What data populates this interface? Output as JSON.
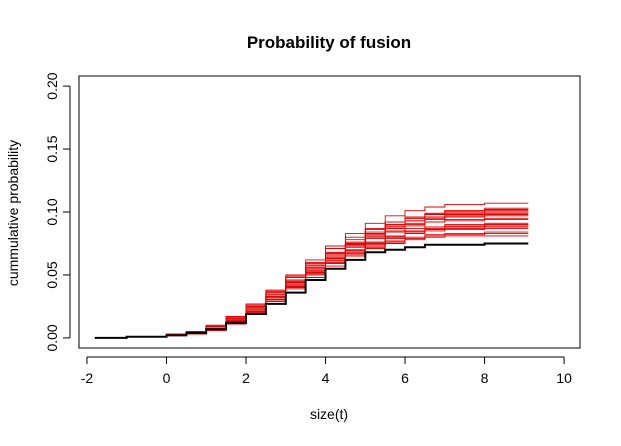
{
  "chart_data": {
    "type": "line",
    "title": "Probability of fusion",
    "xlabel": "size(t)",
    "ylabel": "cummulative probability",
    "xlim": [
      -2.2,
      10.4
    ],
    "ylim": [
      -0.008,
      0.208
    ],
    "xticks": [
      -2,
      0,
      2,
      4,
      6,
      8,
      10
    ],
    "xtick_labels": [
      "-2",
      "0",
      "2",
      "4",
      "6",
      "8",
      "10"
    ],
    "yticks": [
      0.0,
      0.05,
      0.1,
      0.15,
      0.2
    ],
    "ytick_labels": [
      "0.00",
      "0.05",
      "0.10",
      "0.15",
      "0.20"
    ],
    "grid": false,
    "legend": "none",
    "line_style": "step",
    "colors": {
      "reference": "#000000",
      "simulations": "#e00000"
    },
    "series": [
      {
        "color": "#000000",
        "role": "reference",
        "x": [
          -1.8,
          -1.0,
          0.0,
          0.5,
          1.0,
          1.5,
          2.0,
          2.5,
          3.0,
          3.5,
          4.0,
          4.5,
          5.0,
          5.5,
          6.0,
          6.5,
          7.0,
          8.0,
          9.1
        ],
        "y": [
          0.0,
          0.001,
          0.002,
          0.004,
          0.007,
          0.012,
          0.019,
          0.027,
          0.036,
          0.046,
          0.055,
          0.062,
          0.068,
          0.07,
          0.072,
          0.074,
          0.074,
          0.075,
          0.075
        ]
      },
      {
        "color": "#e00000",
        "role": "simulation",
        "x": [
          -1.8,
          -1.0,
          0.0,
          0.5,
          1.0,
          1.5,
          2.0,
          2.5,
          3.0,
          3.5,
          4.0,
          4.5,
          5.0,
          5.5,
          6.0,
          6.5,
          7.0,
          8.0,
          9.1
        ],
        "y": [
          0.0,
          0.001,
          0.002,
          0.004,
          0.008,
          0.014,
          0.023,
          0.033,
          0.045,
          0.057,
          0.068,
          0.078,
          0.086,
          0.092,
          0.096,
          0.099,
          0.101,
          0.102,
          0.102
        ]
      },
      {
        "color": "#e00000",
        "role": "simulation",
        "x": [
          -1.8,
          -1.0,
          0.0,
          0.5,
          1.0,
          1.5,
          2.0,
          2.5,
          3.0,
          3.5,
          4.0,
          4.5,
          5.0,
          5.5,
          6.0,
          6.5,
          7.0,
          8.0,
          9.1
        ],
        "y": [
          0.0,
          0.001,
          0.002,
          0.005,
          0.009,
          0.016,
          0.026,
          0.037,
          0.05,
          0.062,
          0.073,
          0.083,
          0.091,
          0.097,
          0.101,
          0.104,
          0.106,
          0.107,
          0.107
        ]
      },
      {
        "color": "#e00000",
        "role": "simulation",
        "x": [
          -1.8,
          -1.0,
          0.0,
          0.5,
          1.0,
          1.5,
          2.0,
          2.5,
          3.0,
          3.5,
          4.0,
          4.5,
          5.0,
          5.5,
          6.0,
          6.5,
          7.0,
          8.0,
          9.1
        ],
        "y": [
          0.0,
          0.001,
          0.002,
          0.004,
          0.007,
          0.013,
          0.021,
          0.031,
          0.042,
          0.053,
          0.063,
          0.072,
          0.079,
          0.085,
          0.089,
          0.092,
          0.094,
          0.095,
          0.095
        ]
      },
      {
        "color": "#e00000",
        "role": "simulation",
        "x": [
          -1.8,
          -1.0,
          0.0,
          0.5,
          1.0,
          1.5,
          2.0,
          2.5,
          3.0,
          3.5,
          4.0,
          4.5,
          5.0,
          5.5,
          6.0,
          6.5,
          7.0,
          8.0,
          9.1
        ],
        "y": [
          0.0,
          0.001,
          0.002,
          0.003,
          0.006,
          0.011,
          0.019,
          0.029,
          0.04,
          0.051,
          0.061,
          0.069,
          0.076,
          0.081,
          0.085,
          0.088,
          0.09,
          0.091,
          0.091
        ]
      },
      {
        "color": "#e00000",
        "role": "simulation",
        "x": [
          -1.8,
          -1.0,
          0.0,
          0.5,
          1.0,
          1.5,
          2.0,
          2.5,
          3.0,
          3.5,
          4.0,
          4.5,
          5.0,
          5.5,
          6.0,
          6.5,
          7.0,
          8.0,
          9.1
        ],
        "y": [
          0.0,
          0.001,
          0.003,
          0.005,
          0.01,
          0.017,
          0.027,
          0.038,
          0.049,
          0.059,
          0.068,
          0.076,
          0.082,
          0.087,
          0.09,
          0.092,
          0.093,
          0.094,
          0.094
        ]
      },
      {
        "color": "#e00000",
        "role": "simulation",
        "x": [
          -1.8,
          -1.0,
          0.0,
          0.5,
          1.0,
          1.5,
          2.0,
          2.5,
          3.0,
          3.5,
          4.0,
          4.5,
          5.0,
          5.5,
          6.0,
          6.5,
          7.0,
          8.0,
          9.1
        ],
        "y": [
          0.0,
          0.001,
          0.002,
          0.004,
          0.008,
          0.014,
          0.022,
          0.032,
          0.043,
          0.053,
          0.062,
          0.07,
          0.076,
          0.08,
          0.083,
          0.085,
          0.086,
          0.087,
          0.087
        ]
      },
      {
        "color": "#e00000",
        "role": "simulation",
        "x": [
          -1.8,
          -1.0,
          0.0,
          0.5,
          1.0,
          1.5,
          2.0,
          2.5,
          3.0,
          3.5,
          4.0,
          4.5,
          5.0,
          5.5,
          6.0,
          6.5,
          7.0,
          8.0,
          9.1
        ],
        "y": [
          0.0,
          0.001,
          0.002,
          0.004,
          0.007,
          0.012,
          0.02,
          0.03,
          0.041,
          0.052,
          0.063,
          0.073,
          0.081,
          0.088,
          0.093,
          0.096,
          0.098,
          0.099,
          0.099
        ]
      },
      {
        "color": "#e00000",
        "role": "simulation",
        "x": [
          -1.8,
          -1.0,
          0.0,
          0.5,
          1.0,
          1.5,
          2.0,
          2.5,
          3.0,
          3.5,
          4.0,
          4.5,
          5.0,
          5.5,
          6.0,
          6.5,
          7.0,
          8.0,
          9.1
        ],
        "y": [
          0.0,
          0.001,
          0.002,
          0.004,
          0.008,
          0.013,
          0.021,
          0.03,
          0.04,
          0.05,
          0.059,
          0.067,
          0.073,
          0.077,
          0.08,
          0.082,
          0.083,
          0.084,
          0.084
        ]
      },
      {
        "color": "#e00000",
        "role": "simulation",
        "x": [
          -1.8,
          -1.0,
          0.0,
          0.5,
          1.0,
          1.5,
          2.0,
          2.5,
          3.0,
          3.5,
          4.0,
          4.5,
          5.0,
          5.5,
          6.0,
          6.5,
          7.0,
          8.0,
          9.1
        ],
        "y": [
          0.0,
          0.001,
          0.002,
          0.004,
          0.009,
          0.015,
          0.024,
          0.034,
          0.045,
          0.056,
          0.066,
          0.075,
          0.083,
          0.089,
          0.093,
          0.095,
          0.097,
          0.098,
          0.098
        ]
      },
      {
        "color": "#e00000",
        "role": "simulation",
        "x": [
          -1.8,
          -1.0,
          0.0,
          0.5,
          1.0,
          1.5,
          2.0,
          2.5,
          3.0,
          3.5,
          4.0,
          4.5,
          5.0,
          5.5,
          6.0,
          6.5,
          7.0,
          8.0,
          9.1
        ],
        "y": [
          0.0,
          0.001,
          0.002,
          0.003,
          0.007,
          0.012,
          0.02,
          0.029,
          0.039,
          0.048,
          0.057,
          0.065,
          0.071,
          0.075,
          0.078,
          0.08,
          0.081,
          0.081,
          0.081
        ]
      },
      {
        "color": "#e00000",
        "role": "simulation",
        "x": [
          -1.8,
          -1.0,
          0.0,
          0.5,
          1.0,
          1.5,
          2.0,
          2.5,
          3.0,
          3.5,
          4.0,
          4.5,
          5.0,
          5.5,
          6.0,
          6.5,
          7.0,
          8.0,
          9.1
        ],
        "y": [
          0.0,
          0.001,
          0.003,
          0.005,
          0.009,
          0.016,
          0.025,
          0.035,
          0.046,
          0.057,
          0.067,
          0.076,
          0.084,
          0.09,
          0.095,
          0.098,
          0.1,
          0.101,
          0.101
        ]
      },
      {
        "color": "#e00000",
        "role": "simulation",
        "x": [
          -1.8,
          -1.0,
          0.0,
          0.5,
          1.0,
          1.5,
          2.0,
          2.5,
          3.0,
          3.5,
          4.0,
          4.5,
          5.0,
          5.5,
          6.0,
          6.5,
          7.0,
          8.0,
          9.1
        ],
        "y": [
          0.0,
          0.001,
          0.002,
          0.004,
          0.008,
          0.014,
          0.022,
          0.031,
          0.041,
          0.051,
          0.06,
          0.068,
          0.074,
          0.079,
          0.083,
          0.086,
          0.088,
          0.089,
          0.089
        ]
      },
      {
        "color": "#e00000",
        "role": "simulation",
        "x": [
          -1.8,
          -1.0,
          0.0,
          0.5,
          1.0,
          1.5,
          2.0,
          2.5,
          3.0,
          3.5,
          4.0,
          4.5,
          5.0,
          5.5,
          6.0,
          6.5,
          7.0,
          8.0,
          9.1
        ],
        "y": [
          0.0,
          0.001,
          0.002,
          0.004,
          0.008,
          0.015,
          0.024,
          0.034,
          0.044,
          0.054,
          0.063,
          0.07,
          0.076,
          0.081,
          0.084,
          0.086,
          0.087,
          0.088,
          0.088
        ]
      },
      {
        "color": "#e00000",
        "role": "simulation",
        "x": [
          -1.8,
          -1.0,
          0.0,
          0.5,
          1.0,
          1.5,
          2.0,
          2.5,
          3.0,
          3.5,
          4.0,
          4.5,
          5.0,
          5.5,
          6.0,
          6.5,
          7.0,
          8.0,
          9.1
        ],
        "y": [
          0.0,
          0.001,
          0.002,
          0.005,
          0.009,
          0.016,
          0.025,
          0.036,
          0.048,
          0.06,
          0.071,
          0.08,
          0.087,
          0.092,
          0.096,
          0.098,
          0.099,
          0.1,
          0.1
        ]
      },
      {
        "color": "#e00000",
        "role": "simulation",
        "x": [
          -1.8,
          -1.0,
          0.0,
          0.5,
          1.0,
          1.5,
          2.0,
          2.5,
          3.0,
          3.5,
          4.0,
          4.5,
          5.0,
          5.5,
          6.0,
          6.5,
          7.0,
          8.0,
          9.1
        ],
        "y": [
          0.0,
          0.001,
          0.002,
          0.003,
          0.006,
          0.011,
          0.019,
          0.029,
          0.04,
          0.05,
          0.059,
          0.066,
          0.072,
          0.076,
          0.079,
          0.081,
          0.082,
          0.083,
          0.083
        ]
      },
      {
        "color": "#e00000",
        "role": "simulation",
        "x": [
          -1.8,
          -1.0,
          0.0,
          0.5,
          1.0,
          1.5,
          2.0,
          2.5,
          3.0,
          3.5,
          4.0,
          4.5,
          5.0,
          5.5,
          6.0,
          6.5,
          7.0,
          8.0,
          9.1
        ],
        "y": [
          0.0,
          0.001,
          0.002,
          0.004,
          0.008,
          0.014,
          0.023,
          0.033,
          0.044,
          0.055,
          0.065,
          0.074,
          0.081,
          0.087,
          0.091,
          0.094,
          0.096,
          0.097,
          0.097
        ]
      },
      {
        "color": "#e00000",
        "role": "simulation",
        "x": [
          -1.8,
          -1.0,
          0.0,
          0.5,
          1.0,
          1.5,
          2.0,
          2.5,
          3.0,
          3.5,
          4.0,
          4.5,
          5.0,
          5.5,
          6.0,
          6.5,
          7.0,
          8.0,
          9.1
        ],
        "y": [
          0.0,
          0.001,
          0.002,
          0.004,
          0.007,
          0.013,
          0.021,
          0.031,
          0.042,
          0.052,
          0.061,
          0.069,
          0.075,
          0.08,
          0.084,
          0.087,
          0.089,
          0.09,
          0.09
        ]
      },
      {
        "color": "#e00000",
        "role": "simulation",
        "x": [
          -1.8,
          -1.0,
          0.0,
          0.5,
          1.0,
          1.5,
          2.0,
          2.5,
          3.0,
          3.5,
          4.0,
          4.5,
          5.0,
          5.5,
          6.0,
          6.5,
          7.0,
          8.0,
          9.1
        ],
        "y": [
          0.0,
          0.001,
          0.003,
          0.005,
          0.01,
          0.017,
          0.026,
          0.037,
          0.048,
          0.058,
          0.067,
          0.074,
          0.08,
          0.084,
          0.087,
          0.088,
          0.089,
          0.09,
          0.09
        ]
      },
      {
        "color": "#e00000",
        "role": "simulation",
        "x": [
          -1.8,
          -1.0,
          0.0,
          0.5,
          1.0,
          1.5,
          2.0,
          2.5,
          3.0,
          3.5,
          4.0,
          4.5,
          5.0,
          5.5,
          6.0,
          6.5,
          7.0,
          8.0,
          9.1
        ],
        "y": [
          0.0,
          0.001,
          0.002,
          0.004,
          0.007,
          0.012,
          0.02,
          0.03,
          0.041,
          0.053,
          0.064,
          0.074,
          0.083,
          0.09,
          0.095,
          0.099,
          0.101,
          0.103,
          0.103
        ]
      }
    ]
  }
}
